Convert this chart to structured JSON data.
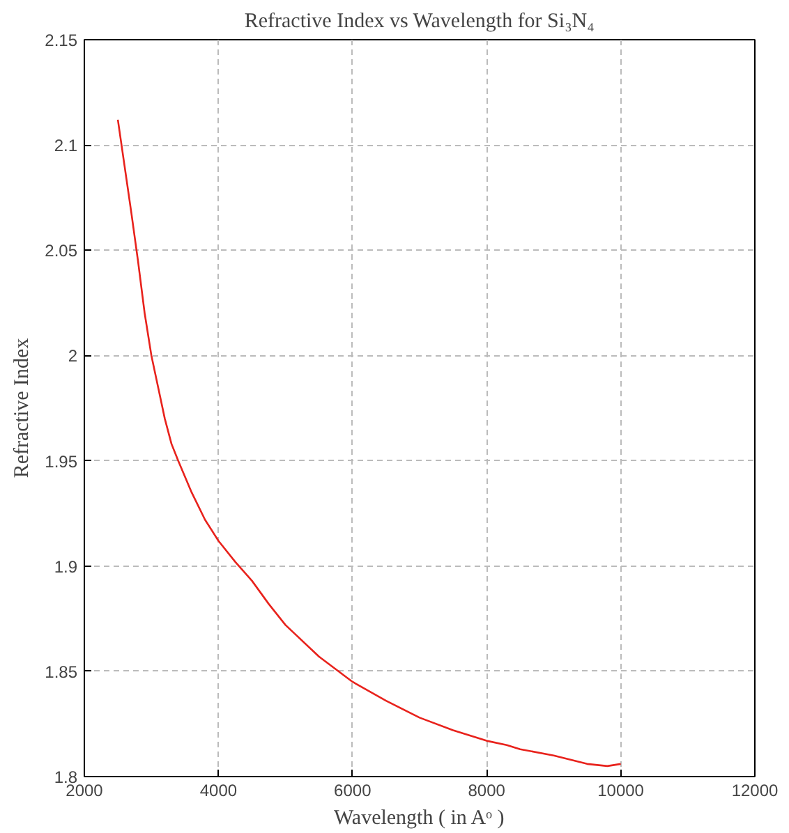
{
  "chart_data": {
    "type": "line",
    "title": "Refractive Index vs Wavelength for Si₃N₄",
    "xlabel": "Wavelength ( in Aᵒ )",
    "ylabel": "Refractive Index",
    "series": [
      {
        "color": "#e8221c",
        "x": [
          2500,
          2600,
          2700,
          2800,
          2900,
          3000,
          3100,
          3200,
          3300,
          3400,
          3600,
          3800,
          4000,
          4250,
          4500,
          4750,
          5000,
          5500,
          6000,
          6500,
          7000,
          7500,
          8000,
          8300,
          8500,
          9000,
          9500,
          9800,
          10000
        ],
        "values": [
          2.112,
          2.09,
          2.068,
          2.045,
          2.02,
          2.0,
          1.985,
          1.97,
          1.958,
          1.95,
          1.935,
          1.922,
          1.912,
          1.902,
          1.893,
          1.882,
          1.872,
          1.857,
          1.845,
          1.836,
          1.828,
          1.822,
          1.817,
          1.815,
          1.813,
          1.81,
          1.806,
          1.805,
          1.806
        ]
      }
    ],
    "xlim": [
      2000,
      12000
    ],
    "xticks": [
      2000,
      4000,
      6000,
      8000,
      10000,
      12000
    ],
    "ylim": [
      1.8,
      2.15
    ],
    "yticks": [
      1.8,
      1.85,
      1.9,
      1.95,
      2,
      2.05,
      2.1,
      2.15
    ],
    "grid": true,
    "marker": "none",
    "line_style": "solid"
  }
}
